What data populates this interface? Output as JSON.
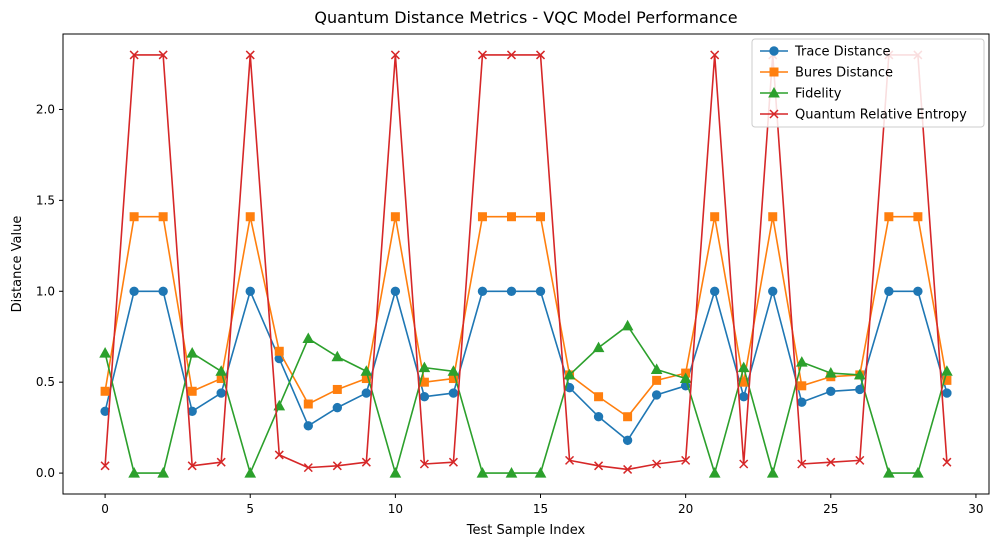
{
  "chart_data": {
    "type": "line",
    "title": "Quantum Distance Metrics - VQC Model Performance",
    "xlabel": "Test Sample Index",
    "ylabel": "Distance Value",
    "xlim": [
      -1.45,
      30.45
    ],
    "ylim": [
      -0.115,
      2.415
    ],
    "xticks": [
      0,
      5,
      10,
      15,
      20,
      25,
      30
    ],
    "xtick_labels": [
      "0",
      "5",
      "10",
      "15",
      "20",
      "25",
      "30"
    ],
    "yticks": [
      0.0,
      0.5,
      1.0,
      1.5,
      2.0
    ],
    "ytick_labels": [
      "0.0",
      "0.5",
      "1.0",
      "1.5",
      "2.0"
    ],
    "grid": false,
    "legend_position": "top-right",
    "x": [
      0,
      1,
      2,
      3,
      4,
      5,
      6,
      7,
      8,
      9,
      10,
      11,
      12,
      13,
      14,
      15,
      16,
      17,
      18,
      19,
      20,
      21,
      22,
      23,
      24,
      25,
      26,
      27,
      28,
      29
    ],
    "series": [
      {
        "name": "Trace Distance",
        "color": "#1f77b4",
        "marker": "circle",
        "values": [
          0.34,
          1.0,
          1.0,
          0.34,
          0.44,
          1.0,
          0.63,
          0.26,
          0.36,
          0.44,
          1.0,
          0.42,
          0.44,
          1.0,
          1.0,
          1.0,
          0.47,
          0.31,
          0.18,
          0.43,
          0.48,
          1.0,
          0.42,
          1.0,
          0.39,
          0.45,
          0.46,
          1.0,
          1.0,
          0.44
        ]
      },
      {
        "name": "Bures Distance",
        "color": "#ff7f0e",
        "marker": "square",
        "values": [
          0.45,
          1.41,
          1.41,
          0.45,
          0.52,
          1.41,
          0.67,
          0.38,
          0.46,
          0.52,
          1.41,
          0.5,
          0.52,
          1.41,
          1.41,
          1.41,
          0.54,
          0.42,
          0.31,
          0.51,
          0.55,
          1.41,
          0.5,
          1.41,
          0.48,
          0.53,
          0.54,
          1.41,
          1.41,
          0.51
        ]
      },
      {
        "name": "Fidelity",
        "color": "#2ca02c",
        "marker": "triangle",
        "values": [
          0.66,
          0.0,
          0.0,
          0.66,
          0.56,
          0.0,
          0.37,
          0.74,
          0.64,
          0.56,
          0.0,
          0.58,
          0.56,
          0.0,
          0.0,
          0.0,
          0.54,
          0.69,
          0.81,
          0.57,
          0.52,
          0.0,
          0.58,
          0.0,
          0.61,
          0.55,
          0.54,
          0.0,
          0.0,
          0.56
        ]
      },
      {
        "name": "Quantum Relative Entropy",
        "color": "#d62728",
        "marker": "x",
        "values": [
          0.04,
          2.3,
          2.3,
          0.04,
          0.06,
          2.3,
          0.1,
          0.03,
          0.04,
          0.06,
          2.3,
          0.05,
          0.06,
          2.3,
          2.3,
          2.3,
          0.07,
          0.04,
          0.02,
          0.05,
          0.07,
          2.3,
          0.05,
          2.3,
          0.05,
          0.06,
          0.07,
          2.3,
          2.3,
          0.06
        ]
      }
    ]
  }
}
